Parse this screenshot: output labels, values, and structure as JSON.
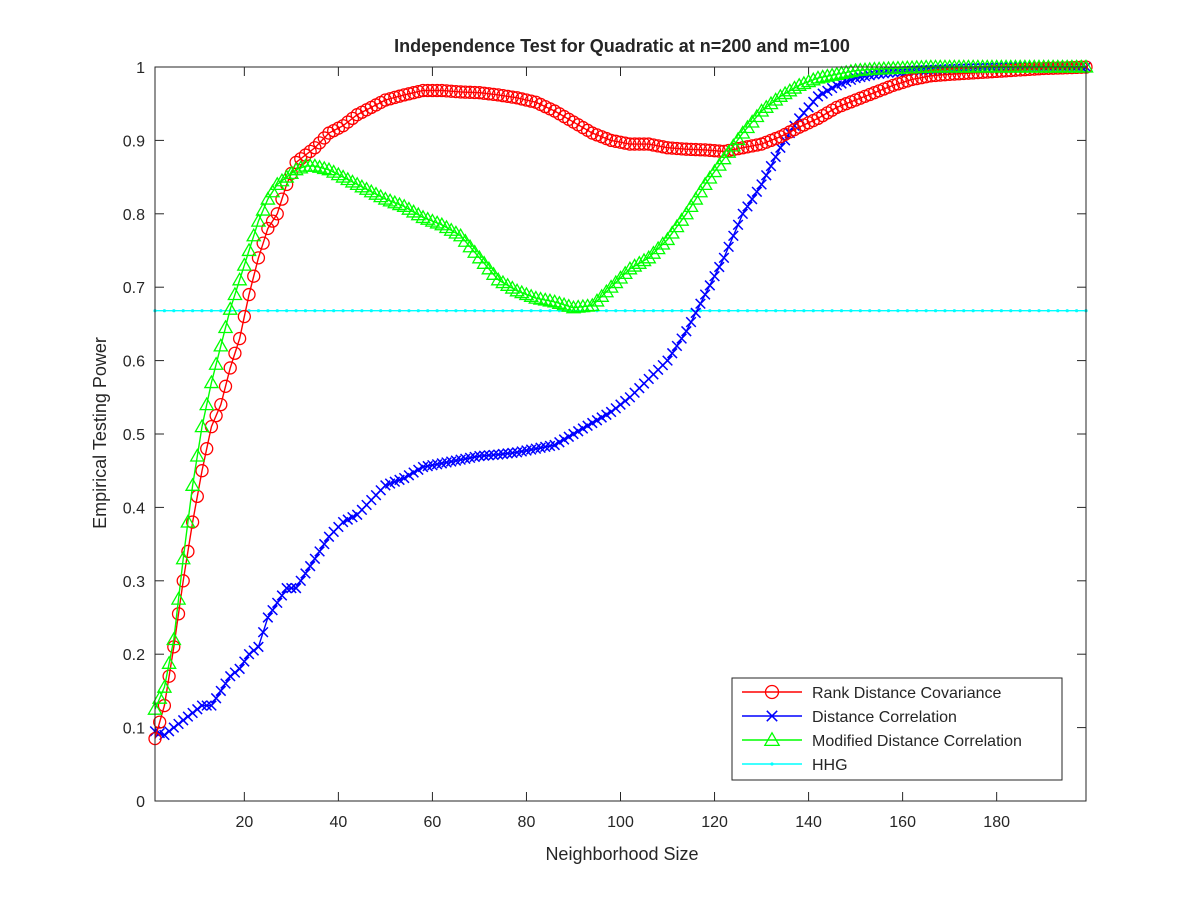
{
  "chart_data": {
    "type": "line",
    "title": "Independence Test for Quadratic at n=200 and m=100",
    "xlabel": "Neighborhood Size",
    "ylabel": "Empirical Testing Power",
    "xlim": [
      1,
      199
    ],
    "ylim": [
      0,
      1
    ],
    "xticks": [
      20,
      40,
      60,
      80,
      100,
      120,
      140,
      160,
      180
    ],
    "yticks": [
      0,
      0.1,
      0.2,
      0.3,
      0.4,
      0.5,
      0.6,
      0.7,
      0.8,
      0.9,
      1
    ],
    "grid": false,
    "legend_position": "bottom-right",
    "series": [
      {
        "name": "Rank Distance Covariance",
        "color": "#ff0000",
        "marker": "circle",
        "x": [
          1,
          3,
          5,
          7,
          9,
          11,
          13,
          15,
          17,
          19,
          21,
          23,
          25,
          27,
          29,
          31,
          33,
          35,
          38,
          41,
          44,
          47,
          50,
          54,
          58,
          62,
          66,
          70,
          74,
          78,
          82,
          86,
          90,
          94,
          98,
          102,
          106,
          110,
          114,
          118,
          122,
          126,
          130,
          134,
          138,
          142,
          146,
          150,
          154,
          158,
          162,
          166,
          170,
          175,
          180,
          185,
          190,
          195,
          199
        ],
        "y": [
          0.085,
          0.13,
          0.21,
          0.3,
          0.38,
          0.45,
          0.51,
          0.54,
          0.59,
          0.63,
          0.69,
          0.74,
          0.78,
          0.8,
          0.84,
          0.87,
          0.88,
          0.89,
          0.91,
          0.92,
          0.935,
          0.945,
          0.955,
          0.962,
          0.968,
          0.968,
          0.966,
          0.965,
          0.962,
          0.958,
          0.952,
          0.94,
          0.925,
          0.91,
          0.9,
          0.895,
          0.895,
          0.89,
          0.888,
          0.887,
          0.885,
          0.89,
          0.895,
          0.905,
          0.918,
          0.93,
          0.945,
          0.955,
          0.965,
          0.975,
          0.983,
          0.988,
          0.99,
          0.992,
          0.994,
          0.996,
          0.998,
          0.999,
          1.0
        ]
      },
      {
        "name": "Distance Correlation",
        "color": "#0000ff",
        "marker": "x",
        "x": [
          1,
          3,
          5,
          7,
          9,
          11,
          13,
          15,
          17,
          19,
          21,
          23,
          25,
          27,
          29,
          31,
          33,
          35,
          38,
          41,
          44,
          47,
          50,
          54,
          58,
          62,
          66,
          70,
          74,
          78,
          82,
          86,
          90,
          94,
          98,
          102,
          106,
          110,
          114,
          118,
          122,
          126,
          130,
          134,
          138,
          142,
          146,
          150,
          154,
          158,
          162,
          166,
          170,
          175,
          180,
          185,
          190,
          195,
          199
        ],
        "y": [
          0.095,
          0.09,
          0.1,
          0.11,
          0.12,
          0.13,
          0.13,
          0.15,
          0.17,
          0.18,
          0.2,
          0.21,
          0.25,
          0.27,
          0.29,
          0.29,
          0.31,
          0.33,
          0.36,
          0.38,
          0.39,
          0.41,
          0.43,
          0.44,
          0.455,
          0.46,
          0.465,
          0.47,
          0.472,
          0.475,
          0.48,
          0.485,
          0.5,
          0.515,
          0.53,
          0.55,
          0.575,
          0.6,
          0.64,
          0.69,
          0.74,
          0.8,
          0.84,
          0.89,
          0.93,
          0.96,
          0.975,
          0.985,
          0.99,
          0.993,
          0.995,
          0.996,
          0.997,
          0.998,
          0.999,
          1.0,
          1.0,
          1.0,
          1.0
        ]
      },
      {
        "name": "Modified Distance Correlation",
        "color": "#00ff00",
        "marker": "triangle",
        "x": [
          1,
          3,
          5,
          7,
          9,
          11,
          13,
          15,
          17,
          19,
          21,
          23,
          25,
          27,
          29,
          31,
          33,
          35,
          38,
          41,
          44,
          47,
          50,
          54,
          58,
          62,
          66,
          70,
          74,
          78,
          82,
          86,
          90,
          94,
          98,
          102,
          106,
          110,
          114,
          118,
          122,
          126,
          130,
          134,
          138,
          142,
          146,
          150,
          154,
          158,
          162,
          166,
          170,
          175,
          180,
          185,
          190,
          195,
          199
        ],
        "y": [
          0.125,
          0.155,
          0.22,
          0.33,
          0.43,
          0.51,
          0.57,
          0.62,
          0.67,
          0.71,
          0.75,
          0.79,
          0.82,
          0.84,
          0.85,
          0.86,
          0.865,
          0.865,
          0.86,
          0.85,
          0.84,
          0.83,
          0.82,
          0.81,
          0.795,
          0.785,
          0.77,
          0.74,
          0.71,
          0.695,
          0.685,
          0.68,
          0.672,
          0.675,
          0.7,
          0.725,
          0.74,
          0.765,
          0.8,
          0.84,
          0.875,
          0.91,
          0.94,
          0.96,
          0.975,
          0.985,
          0.99,
          0.995,
          0.997,
          0.998,
          0.999,
          1.0,
          1.0,
          1.0,
          1.0,
          1.0,
          1.0,
          1.0,
          1.0
        ]
      },
      {
        "name": "HHG",
        "color": "#00ffff",
        "marker": "dot",
        "x": [
          1,
          199
        ],
        "y": [
          0.668,
          0.668
        ]
      }
    ]
  }
}
